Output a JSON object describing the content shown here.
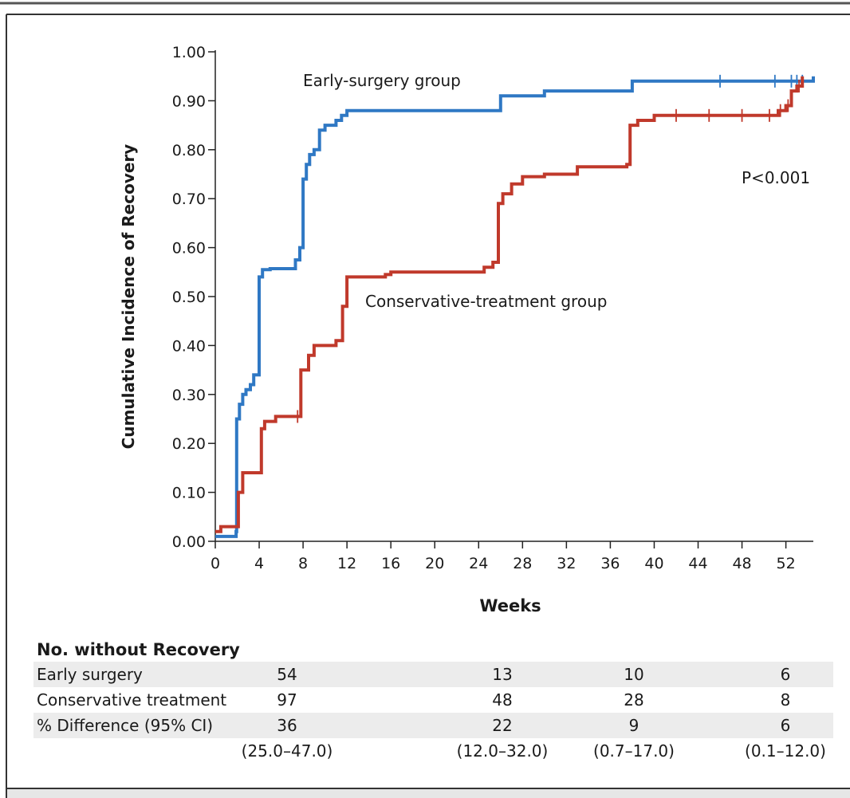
{
  "chart_data": {
    "type": "line",
    "step": true,
    "title": "",
    "xlabel": "Weeks",
    "ylabel": "Cumulative Incidence of Recovery",
    "xlim": [
      0,
      54.5
    ],
    "ylim": [
      0,
      1.0
    ],
    "x_ticks": [
      "0",
      "4",
      "8",
      "12",
      "16",
      "20",
      "24",
      "28",
      "32",
      "36",
      "40",
      "44",
      "48",
      "52"
    ],
    "y_ticks": [
      "0.00",
      "0.10",
      "0.20",
      "0.30",
      "0.40",
      "0.50",
      "0.60",
      "0.70",
      "0.80",
      "0.90",
      "1.00"
    ],
    "grid": false,
    "annotation": "P<0.001",
    "colors": {
      "early": "#2f78c4",
      "conservative": "#c0392b"
    },
    "series": [
      {
        "key": "early",
        "label": "Early-surgery group",
        "color": "#2f78c4",
        "points": [
          [
            0,
            0.01
          ],
          [
            1,
            0.01
          ],
          [
            1.9,
            0.02
          ],
          [
            1.95,
            0.25
          ],
          [
            2.2,
            0.28
          ],
          [
            2.5,
            0.3
          ],
          [
            2.8,
            0.31
          ],
          [
            3.2,
            0.32
          ],
          [
            3.5,
            0.34
          ],
          [
            3.9,
            0.34
          ],
          [
            4,
            0.54
          ],
          [
            4.3,
            0.555
          ],
          [
            5,
            0.557
          ],
          [
            7,
            0.557
          ],
          [
            7.3,
            0.575
          ],
          [
            7.7,
            0.6
          ],
          [
            8,
            0.74
          ],
          [
            8.3,
            0.77
          ],
          [
            8.6,
            0.79
          ],
          [
            9,
            0.8
          ],
          [
            9.5,
            0.84
          ],
          [
            10,
            0.85
          ],
          [
            11,
            0.86
          ],
          [
            11.5,
            0.87
          ],
          [
            12,
            0.88
          ],
          [
            25.5,
            0.88
          ],
          [
            26,
            0.91
          ],
          [
            30,
            0.92
          ],
          [
            37.5,
            0.92
          ],
          [
            38,
            0.94
          ],
          [
            54.5,
            0.95
          ]
        ],
        "censor_x": [
          46,
          51,
          52.5,
          53,
          53.5
        ]
      },
      {
        "key": "conservative",
        "label": "Conservative-treatment group",
        "color": "#c0392b",
        "points": [
          [
            0,
            0.02
          ],
          [
            0.5,
            0.03
          ],
          [
            2,
            0.03
          ],
          [
            2.1,
            0.1
          ],
          [
            2.5,
            0.14
          ],
          [
            4,
            0.14
          ],
          [
            4.2,
            0.23
          ],
          [
            4.5,
            0.245
          ],
          [
            5.5,
            0.255
          ],
          [
            7.5,
            0.255
          ],
          [
            7.8,
            0.35
          ],
          [
            8.5,
            0.38
          ],
          [
            9,
            0.4
          ],
          [
            11,
            0.41
          ],
          [
            11.5,
            0.41
          ],
          [
            11.6,
            0.48
          ],
          [
            12,
            0.54
          ],
          [
            15.5,
            0.545
          ],
          [
            16,
            0.55
          ],
          [
            23,
            0.55
          ],
          [
            24.5,
            0.56
          ],
          [
            25.3,
            0.57
          ],
          [
            25.8,
            0.69
          ],
          [
            26.2,
            0.71
          ],
          [
            27,
            0.73
          ],
          [
            28,
            0.745
          ],
          [
            30,
            0.75
          ],
          [
            33,
            0.765
          ],
          [
            37.5,
            0.77
          ],
          [
            37.8,
            0.85
          ],
          [
            38.5,
            0.86
          ],
          [
            40,
            0.87
          ],
          [
            51,
            0.87
          ],
          [
            51.3,
            0.88
          ],
          [
            52,
            0.89
          ],
          [
            52.5,
            0.92
          ],
          [
            53,
            0.93
          ],
          [
            53.5,
            0.95
          ]
        ],
        "censor_x": [
          7.5,
          42,
          45,
          48,
          50.5,
          51.5,
          52.2,
          53.2
        ]
      }
    ]
  },
  "risk_table": {
    "title": "No. without Recovery",
    "rows": [
      {
        "label": "Early surgery",
        "values": [
          "54",
          "13",
          "10",
          "6"
        ],
        "shaded": true
      },
      {
        "label": "Conservative treatment",
        "values": [
          "97",
          "48",
          "28",
          "8"
        ],
        "shaded": false
      },
      {
        "label": "% Difference (95% CI)",
        "values": [
          "36",
          "22",
          "9",
          "6"
        ],
        "shaded": true
      },
      {
        "label": "",
        "values": [
          "(25.0–47.0)",
          "(12.0–32.0)",
          "(0.7–17.0)",
          "(0.1–12.0)"
        ],
        "shaded": false
      }
    ]
  }
}
